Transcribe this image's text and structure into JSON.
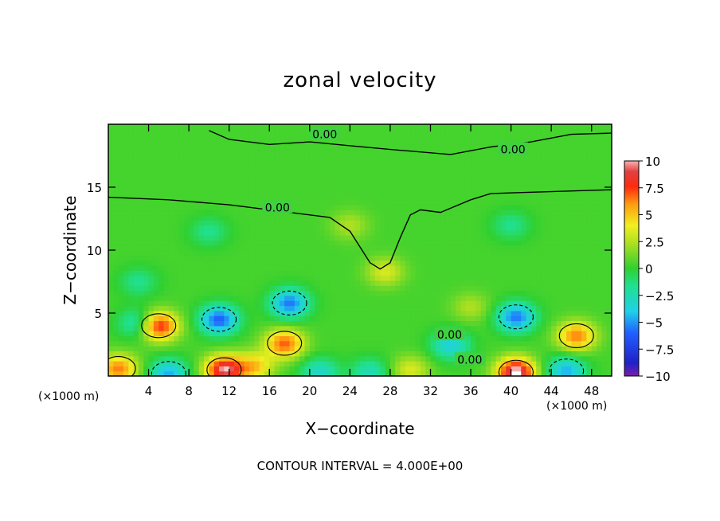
{
  "chart_data": {
    "type": "heatmap",
    "title": "zonal velocity",
    "xlabel": "X−coordinate",
    "ylabel": "Z−coordinate",
    "x_unit": "(×1000 m)",
    "x_unit_right": "(×1000 m)",
    "xlim": [
      0,
      50
    ],
    "ylim": [
      0,
      20
    ],
    "x_ticks": [
      4,
      8,
      12,
      16,
      20,
      24,
      28,
      32,
      36,
      40,
      44,
      48
    ],
    "y_ticks": [
      5,
      10,
      15
    ],
    "colorbar": {
      "ticks": [
        10,
        7.5,
        5,
        2.5,
        0,
        -2.5,
        -5,
        -7.5,
        -10
      ],
      "tick_labels": [
        "10",
        "7.5",
        "5",
        "2.5",
        "0",
        "−2.5",
        "−5",
        "−7.5",
        "−10"
      ],
      "range": [
        -10,
        10
      ]
    },
    "contour_labels": [
      "0.00",
      "0.00",
      "0.00",
      "0.00",
      "0.00"
    ],
    "blobs": [
      {
        "x": 5.0,
        "z": 4.0,
        "v": 8.0
      },
      {
        "x": 1.0,
        "z": 0.6,
        "v": 6.0
      },
      {
        "x": 11.5,
        "z": 0.5,
        "v": 9.0
      },
      {
        "x": 11.0,
        "z": 4.5,
        "v": -6.5
      },
      {
        "x": 17.5,
        "z": 2.6,
        "v": 6.5
      },
      {
        "x": 18.0,
        "z": 5.8,
        "v": -6.0
      },
      {
        "x": 3.0,
        "z": 4.2,
        "v": -3.5
      },
      {
        "x": 40.5,
        "z": 0.3,
        "v": 10.0
      },
      {
        "x": 40.5,
        "z": 4.7,
        "v": -6.0
      },
      {
        "x": 46.5,
        "z": 3.2,
        "v": 6.0
      },
      {
        "x": 34.0,
        "z": 2.5,
        "v": -4.0
      },
      {
        "x": 27.5,
        "z": 8.3,
        "v": 3.0
      },
      {
        "x": 26.0,
        "z": 0.3,
        "v": -3.0
      },
      {
        "x": 6.0,
        "z": 0.2,
        "v": -5.0
      },
      {
        "x": 21.0,
        "z": 0.3,
        "v": -3.5
      },
      {
        "x": 30.0,
        "z": 0.5,
        "v": 3.0
      },
      {
        "x": 45.5,
        "z": 0.4,
        "v": -5.0
      },
      {
        "x": 14.5,
        "z": 0.8,
        "v": 4.5
      },
      {
        "x": 24.0,
        "z": 12.0,
        "v": 2.0
      },
      {
        "x": 10.0,
        "z": 11.5,
        "v": -2.0
      },
      {
        "x": 40.0,
        "z": 12.0,
        "v": -2.0
      },
      {
        "x": 3.0,
        "z": 7.5,
        "v": -2.0
      },
      {
        "x": 36.0,
        "z": 5.5,
        "v": 2.0
      }
    ]
  },
  "texts": {
    "contour_interval": "CONTOUR INTERVAL = 4.000E+00"
  }
}
